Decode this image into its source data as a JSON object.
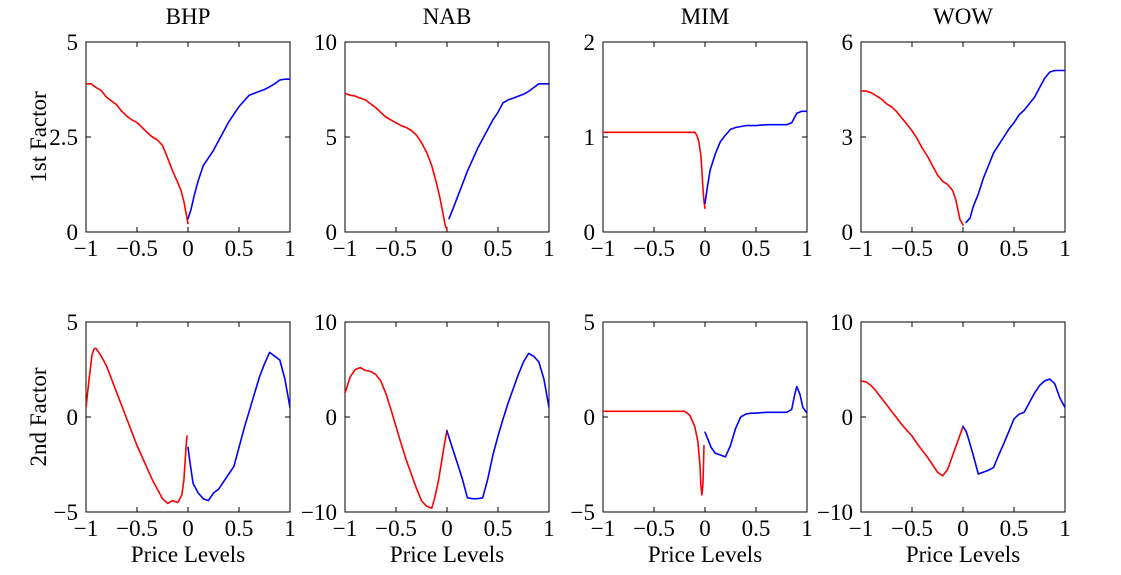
{
  "colors": {
    "negative": "#ff0000",
    "positive": "#0000ff",
    "axes": "#000000",
    "background": "#ffffff"
  },
  "chart_data": [
    {
      "type": "line",
      "title": "BHP",
      "ylabel": "1st Factor",
      "xlabel": "",
      "xlim": [
        -1,
        1
      ],
      "ylim": [
        0,
        5
      ],
      "xticks": [
        -1,
        -0.5,
        0,
        0.5,
        1
      ],
      "xticklabels": [
        "−1",
        "−0.5",
        "0",
        "0.5",
        "1"
      ],
      "yticks": [
        0,
        2.5,
        5
      ],
      "yticklabels": [
        "0",
        "2.5",
        "5"
      ],
      "series": [
        {
          "color": "#ff0000",
          "x": [
            -1,
            -0.95,
            -0.9,
            -0.85,
            -0.8,
            -0.75,
            -0.7,
            -0.65,
            -0.6,
            -0.55,
            -0.5,
            -0.45,
            -0.4,
            -0.35,
            -0.3,
            -0.25,
            -0.2,
            -0.15,
            -0.1,
            -0.07,
            -0.04,
            -0.02,
            0
          ],
          "y": [
            3.9,
            3.9,
            3.8,
            3.72,
            3.55,
            3.45,
            3.35,
            3.18,
            3.05,
            2.95,
            2.88,
            2.75,
            2.62,
            2.5,
            2.42,
            2.28,
            1.95,
            1.6,
            1.3,
            1.1,
            0.8,
            0.5,
            0.22
          ]
        },
        {
          "color": "#0000ff",
          "x": [
            0,
            0.03,
            0.06,
            0.1,
            0.15,
            0.2,
            0.25,
            0.3,
            0.35,
            0.4,
            0.45,
            0.5,
            0.55,
            0.6,
            0.65,
            0.7,
            0.75,
            0.8,
            0.85,
            0.9,
            0.95,
            1
          ],
          "y": [
            0.35,
            0.6,
            0.95,
            1.35,
            1.75,
            1.95,
            2.15,
            2.4,
            2.65,
            2.9,
            3.1,
            3.3,
            3.45,
            3.6,
            3.65,
            3.7,
            3.75,
            3.82,
            3.9,
            4.0,
            4.02,
            4.02
          ]
        }
      ]
    },
    {
      "type": "line",
      "title": "NAB",
      "ylabel": "",
      "xlabel": "",
      "xlim": [
        -1,
        1
      ],
      "ylim": [
        0,
        10
      ],
      "xticks": [
        -1,
        -0.5,
        0,
        0.5,
        1
      ],
      "xticklabels": [
        "−1",
        "−0.5",
        "0",
        "0.5",
        "1"
      ],
      "yticks": [
        0,
        5,
        10
      ],
      "yticklabels": [
        "0",
        "5",
        "10"
      ],
      "series": [
        {
          "color": "#ff0000",
          "x": [
            -1,
            -0.95,
            -0.9,
            -0.85,
            -0.8,
            -0.75,
            -0.7,
            -0.65,
            -0.6,
            -0.55,
            -0.5,
            -0.45,
            -0.4,
            -0.35,
            -0.3,
            -0.25,
            -0.2,
            -0.15,
            -0.1,
            -0.07,
            -0.04,
            -0.02,
            0
          ],
          "y": [
            7.3,
            7.2,
            7.15,
            7.05,
            6.95,
            6.75,
            6.55,
            6.3,
            6.05,
            5.9,
            5.75,
            5.6,
            5.5,
            5.35,
            5.1,
            4.7,
            4.2,
            3.5,
            2.5,
            1.8,
            1.0,
            0.4,
            0.1
          ]
        },
        {
          "color": "#0000ff",
          "x": [
            0.02,
            0.05,
            0.1,
            0.15,
            0.2,
            0.25,
            0.3,
            0.35,
            0.4,
            0.45,
            0.5,
            0.55,
            0.6,
            0.65,
            0.7,
            0.75,
            0.8,
            0.85,
            0.9,
            0.95,
            1
          ],
          "y": [
            0.7,
            1.1,
            1.8,
            2.5,
            3.2,
            3.8,
            4.4,
            4.9,
            5.4,
            5.9,
            6.3,
            6.8,
            6.95,
            7.05,
            7.15,
            7.25,
            7.4,
            7.6,
            7.8,
            7.8,
            7.8
          ]
        }
      ]
    },
    {
      "type": "line",
      "title": "MIM",
      "ylabel": "",
      "xlabel": "",
      "xlim": [
        -1,
        1
      ],
      "ylim": [
        0,
        2
      ],
      "xticks": [
        -1,
        -0.5,
        0,
        0.5,
        1
      ],
      "xticklabels": [
        "−1",
        "−0.5",
        "0",
        "0.5",
        "1"
      ],
      "yticks": [
        0,
        1,
        2
      ],
      "yticklabels": [
        "0",
        "1",
        "2"
      ],
      "series": [
        {
          "color": "#ff0000",
          "x": [
            -1,
            -0.8,
            -0.6,
            -0.4,
            -0.2,
            -0.1,
            -0.08,
            -0.06,
            -0.04,
            -0.03,
            -0.02,
            -0.01,
            0
          ],
          "y": [
            1.05,
            1.05,
            1.05,
            1.05,
            1.05,
            1.05,
            1.02,
            0.95,
            0.8,
            0.65,
            0.45,
            0.32,
            0.25
          ]
        },
        {
          "color": "#0000ff",
          "x": [
            0,
            0.02,
            0.05,
            0.1,
            0.15,
            0.2,
            0.25,
            0.3,
            0.4,
            0.5,
            0.6,
            0.7,
            0.8,
            0.85,
            0.9,
            0.95,
            1
          ],
          "y": [
            0.3,
            0.45,
            0.65,
            0.82,
            0.95,
            1.02,
            1.08,
            1.1,
            1.12,
            1.12,
            1.13,
            1.13,
            1.13,
            1.15,
            1.25,
            1.27,
            1.27
          ]
        }
      ]
    },
    {
      "type": "line",
      "title": "WOW",
      "ylabel": "",
      "xlabel": "",
      "xlim": [
        -1,
        1
      ],
      "ylim": [
        0,
        6
      ],
      "xticks": [
        -1,
        -0.5,
        0,
        0.5,
        1
      ],
      "xticklabels": [
        "−1",
        "−0.5",
        "0",
        "0.5",
        "1"
      ],
      "yticks": [
        0,
        3,
        6
      ],
      "yticklabels": [
        "0",
        "3",
        "6"
      ],
      "series": [
        {
          "color": "#ff0000",
          "x": [
            -1,
            -0.95,
            -0.9,
            -0.85,
            -0.8,
            -0.75,
            -0.7,
            -0.65,
            -0.6,
            -0.55,
            -0.5,
            -0.45,
            -0.4,
            -0.35,
            -0.3,
            -0.25,
            -0.2,
            -0.15,
            -0.1,
            -0.07,
            -0.05,
            -0.03,
            0
          ],
          "y": [
            4.45,
            4.45,
            4.4,
            4.3,
            4.2,
            4.05,
            3.95,
            3.8,
            3.6,
            3.4,
            3.2,
            2.95,
            2.65,
            2.4,
            2.1,
            1.8,
            1.6,
            1.5,
            1.3,
            1.0,
            0.7,
            0.4,
            0.22
          ]
        },
        {
          "color": "#0000ff",
          "x": [
            0.03,
            0.07,
            0.1,
            0.15,
            0.2,
            0.25,
            0.3,
            0.35,
            0.4,
            0.45,
            0.5,
            0.55,
            0.6,
            0.65,
            0.7,
            0.75,
            0.8,
            0.85,
            0.9,
            0.95,
            1
          ],
          "y": [
            0.3,
            0.45,
            0.8,
            1.2,
            1.7,
            2.1,
            2.5,
            2.75,
            3.0,
            3.25,
            3.45,
            3.7,
            3.85,
            4.05,
            4.25,
            4.55,
            4.85,
            5.05,
            5.1,
            5.1,
            5.1
          ]
        }
      ]
    },
    {
      "type": "line",
      "title": "",
      "ylabel": "2nd Factor",
      "xlabel": "Price Levels",
      "xlim": [
        -1,
        1
      ],
      "ylim": [
        -5,
        5
      ],
      "xticks": [
        -1,
        -0.5,
        0,
        0.5,
        1
      ],
      "xticklabels": [
        "−1",
        "−0.5",
        "0",
        "0.5",
        "1"
      ],
      "yticks": [
        -5,
        0,
        5
      ],
      "yticklabels": [
        "−5",
        "0",
        "5"
      ],
      "series": [
        {
          "color": "#ff0000",
          "x": [
            -1,
            -0.97,
            -0.94,
            -0.92,
            -0.9,
            -0.85,
            -0.8,
            -0.75,
            -0.7,
            -0.65,
            -0.6,
            -0.55,
            -0.5,
            -0.45,
            -0.4,
            -0.35,
            -0.3,
            -0.25,
            -0.2,
            -0.15,
            -0.1,
            -0.06,
            -0.04,
            -0.03,
            -0.02,
            -0.01
          ],
          "y": [
            0.5,
            2.0,
            3.3,
            3.6,
            3.6,
            3.2,
            2.7,
            2.0,
            1.3,
            0.6,
            -0.1,
            -0.8,
            -1.5,
            -2.1,
            -2.7,
            -3.3,
            -3.8,
            -4.3,
            -4.55,
            -4.4,
            -4.5,
            -4.1,
            -3.3,
            -2.5,
            -1.6,
            -1.0
          ]
        },
        {
          "color": "#0000ff",
          "x": [
            0,
            0.02,
            0.05,
            0.1,
            0.15,
            0.2,
            0.25,
            0.3,
            0.35,
            0.4,
            0.45,
            0.5,
            0.55,
            0.6,
            0.65,
            0.7,
            0.75,
            0.8,
            0.85,
            0.9,
            0.95,
            1
          ],
          "y": [
            -1.6,
            -2.4,
            -3.5,
            -4.0,
            -4.3,
            -4.4,
            -4.0,
            -3.8,
            -3.4,
            -3.0,
            -2.6,
            -1.6,
            -0.6,
            0.3,
            1.2,
            2.1,
            2.8,
            3.4,
            3.2,
            3.0,
            2.0,
            0.5
          ]
        }
      ]
    },
    {
      "type": "line",
      "title": "",
      "ylabel": "",
      "xlabel": "Price Levels",
      "xlim": [
        -1,
        1
      ],
      "ylim": [
        -10,
        10
      ],
      "xticks": [
        -1,
        -0.5,
        0,
        0.5,
        1
      ],
      "xticklabels": [
        "−1",
        "−0.5",
        "0",
        "0.5",
        "1"
      ],
      "yticks": [
        -10,
        0,
        10
      ],
      "yticklabels": [
        "−10",
        "0",
        "10"
      ],
      "series": [
        {
          "color": "#ff0000",
          "x": [
            -1,
            -0.95,
            -0.9,
            -0.85,
            -0.8,
            -0.75,
            -0.7,
            -0.65,
            -0.6,
            -0.55,
            -0.5,
            -0.45,
            -0.4,
            -0.35,
            -0.3,
            -0.25,
            -0.2,
            -0.15,
            -0.12,
            -0.08,
            -0.05,
            -0.02,
            0
          ],
          "y": [
            2.5,
            4.2,
            5.0,
            5.2,
            4.9,
            4.8,
            4.5,
            3.8,
            2.5,
            0.8,
            -1.0,
            -2.8,
            -4.5,
            -6.0,
            -7.5,
            -8.8,
            -9.4,
            -9.6,
            -8.5,
            -6.5,
            -4.5,
            -2.5,
            -1.4
          ]
        },
        {
          "color": "#0000ff",
          "x": [
            0,
            0.03,
            0.06,
            0.1,
            0.15,
            0.2,
            0.25,
            0.3,
            0.35,
            0.4,
            0.45,
            0.5,
            0.55,
            0.6,
            0.65,
            0.7,
            0.75,
            0.8,
            0.85,
            0.9,
            0.95,
            1
          ],
          "y": [
            -1.5,
            -2.5,
            -3.5,
            -4.8,
            -6.5,
            -8.5,
            -8.6,
            -8.6,
            -8.5,
            -6.5,
            -4.0,
            -2.0,
            -0.2,
            1.5,
            3.0,
            4.5,
            5.8,
            6.7,
            6.4,
            5.8,
            4.0,
            1.0
          ]
        }
      ]
    },
    {
      "type": "line",
      "title": "",
      "ylabel": "",
      "xlabel": "Price Levels",
      "xlim": [
        -1,
        1
      ],
      "ylim": [
        -5,
        5
      ],
      "xticks": [
        -1,
        -0.5,
        0,
        0.5,
        1
      ],
      "xticklabels": [
        "−1",
        "−0.5",
        "0",
        "0.5",
        "1"
      ],
      "yticks": [
        -5,
        0,
        5
      ],
      "yticklabels": [
        "−5",
        "0",
        "5"
      ],
      "series": [
        {
          "color": "#ff0000",
          "x": [
            -1,
            -0.9,
            -0.8,
            -0.6,
            -0.4,
            -0.3,
            -0.2,
            -0.15,
            -0.1,
            -0.07,
            -0.05,
            -0.04,
            -0.03,
            -0.02,
            -0.01
          ],
          "y": [
            0.3,
            0.3,
            0.3,
            0.3,
            0.3,
            0.3,
            0.3,
            0.1,
            -0.5,
            -1.3,
            -2.5,
            -3.6,
            -4.1,
            -3.5,
            -1.5
          ]
        },
        {
          "color": "#0000ff",
          "x": [
            0,
            0.03,
            0.06,
            0.1,
            0.15,
            0.2,
            0.25,
            0.3,
            0.35,
            0.4,
            0.45,
            0.5,
            0.6,
            0.7,
            0.8,
            0.85,
            0.88,
            0.9,
            0.93,
            0.96,
            1
          ],
          "y": [
            -0.8,
            -1.2,
            -1.6,
            -1.9,
            -2.0,
            -2.1,
            -1.5,
            -0.6,
            0.0,
            0.15,
            0.2,
            0.2,
            0.25,
            0.25,
            0.25,
            0.4,
            1.2,
            1.6,
            1.2,
            0.5,
            0.2
          ]
        }
      ]
    },
    {
      "type": "line",
      "title": "",
      "ylabel": "",
      "xlabel": "Price Levels",
      "xlim": [
        -1,
        1
      ],
      "ylim": [
        -10,
        10
      ],
      "xticks": [
        -1,
        -0.5,
        0,
        0.5,
        1
      ],
      "xticklabels": [
        "−1",
        "−0.5",
        "0",
        "0.5",
        "1"
      ],
      "yticks": [
        -10,
        0,
        10
      ],
      "yticklabels": [
        "−10",
        "0",
        "10"
      ],
      "series": [
        {
          "color": "#ff0000",
          "x": [
            -1,
            -0.95,
            -0.9,
            -0.85,
            -0.8,
            -0.75,
            -0.7,
            -0.65,
            -0.6,
            -0.55,
            -0.5,
            -0.45,
            -0.4,
            -0.35,
            -0.3,
            -0.25,
            -0.2,
            -0.15,
            -0.1,
            -0.05,
            0
          ],
          "y": [
            3.8,
            3.7,
            3.3,
            2.7,
            2.0,
            1.3,
            0.6,
            -0.1,
            -0.8,
            -1.4,
            -2.0,
            -2.8,
            -3.5,
            -4.2,
            -5.0,
            -5.8,
            -6.2,
            -5.5,
            -4.0,
            -2.5,
            -1.0
          ]
        },
        {
          "color": "#0000ff",
          "x": [
            0,
            0.03,
            0.06,
            0.1,
            0.15,
            0.2,
            0.25,
            0.3,
            0.35,
            0.4,
            0.45,
            0.5,
            0.55,
            0.6,
            0.65,
            0.7,
            0.75,
            0.8,
            0.85,
            0.9,
            0.95,
            1
          ],
          "y": [
            -1.0,
            -1.5,
            -2.5,
            -4.0,
            -6.0,
            -5.8,
            -5.6,
            -5.3,
            -4.0,
            -2.8,
            -1.5,
            -0.2,
            0.3,
            0.5,
            1.5,
            2.5,
            3.3,
            3.8,
            4.0,
            3.5,
            2.0,
            1.0
          ]
        }
      ]
    }
  ]
}
